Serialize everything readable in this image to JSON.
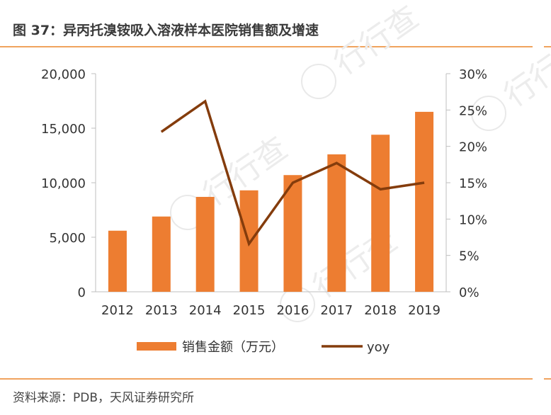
{
  "header": {
    "title": "图 37：异丙托溴铵吸入溶液样本医院销售额及增速"
  },
  "footer": {
    "source": "资料来源：PDB，天风证券研究所"
  },
  "watermark_text": "行行查",
  "colors": {
    "bar": "#ed7d31",
    "line": "#843c0c",
    "rule": "#f0a35e",
    "axis": "#bfbfbf"
  },
  "chart_data": {
    "type": "bar",
    "categories": [
      "2012",
      "2013",
      "2014",
      "2015",
      "2016",
      "2017",
      "2018",
      "2019"
    ],
    "series": [
      {
        "name": "销售金额（万元）",
        "type": "bar",
        "axis": "left",
        "values": [
          5600,
          6900,
          8700,
          9300,
          10700,
          12600,
          14400,
          16500
        ]
      },
      {
        "name": "yoy",
        "type": "line",
        "axis": "right",
        "values": [
          null,
          22,
          26.2,
          6.6,
          15,
          17.7,
          14.1,
          15
        ]
      }
    ],
    "y_left": {
      "min": 0,
      "max": 20000,
      "ticks": [
        "0",
        "5,000",
        "10,000",
        "15,000",
        "20,000"
      ],
      "tick_values": [
        0,
        5000,
        10000,
        15000,
        20000
      ]
    },
    "y_right": {
      "min": 0,
      "max": 30,
      "ticks": [
        "0%",
        "5%",
        "10%",
        "15%",
        "20%",
        "25%",
        "30%"
      ],
      "tick_values": [
        0,
        5,
        10,
        15,
        20,
        25,
        30
      ]
    },
    "legend": [
      "销售金额（万元）",
      "yoy"
    ],
    "legend_position": "bottom"
  }
}
